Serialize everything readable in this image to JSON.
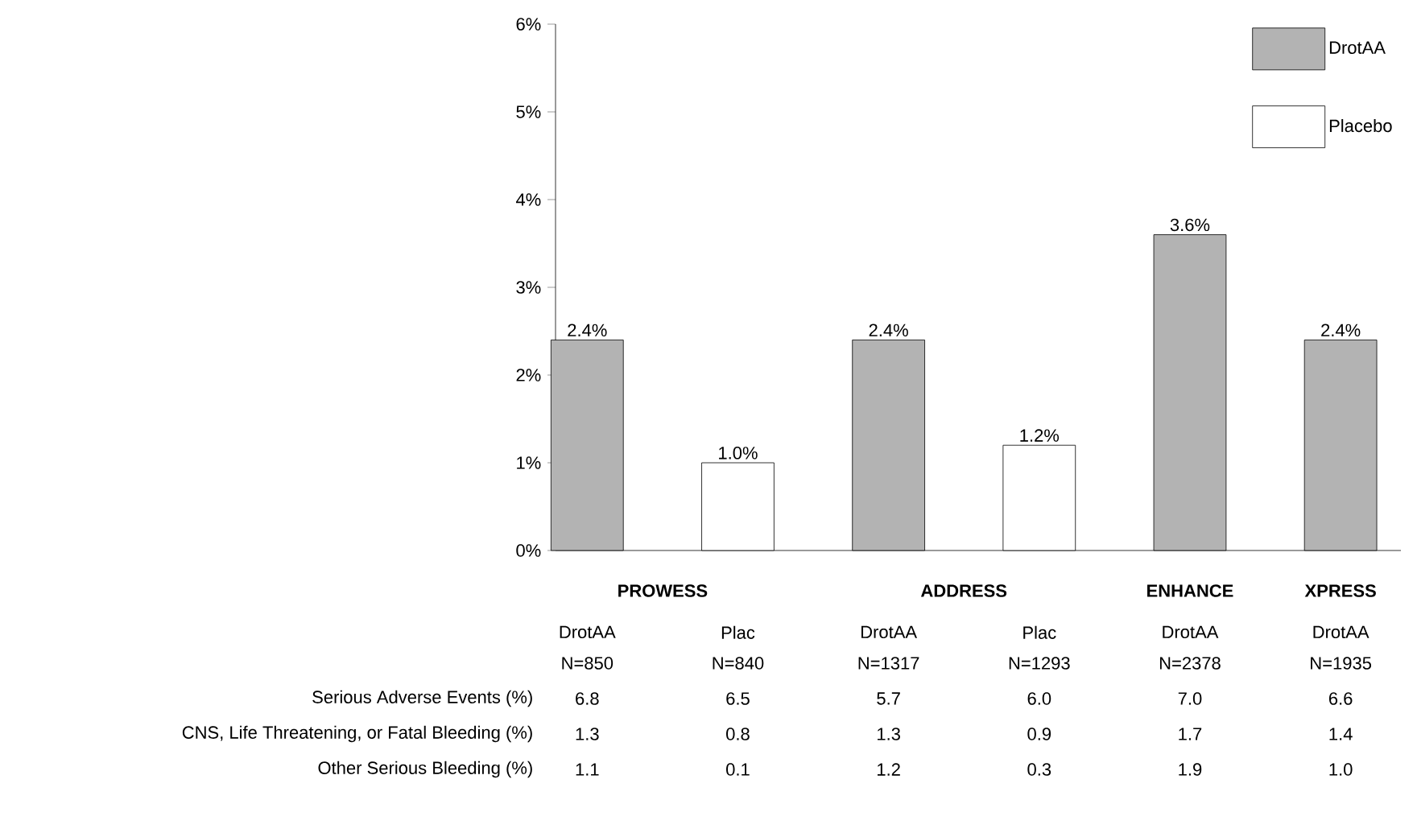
{
  "chart_data": {
    "type": "bar",
    "categories": [
      "DrotAA",
      "Plac",
      "DrotAA",
      "Plac",
      "DrotAA",
      "DrotAA"
    ],
    "series": [
      {
        "name": "DrotAA",
        "color": "#b3b3b3",
        "values": [
          2.4,
          null,
          2.4,
          null,
          3.6,
          2.4
        ],
        "value_labels": [
          "2.4%",
          null,
          "2.4%",
          null,
          "3.6%",
          "2.4%"
        ]
      },
      {
        "name": "Placebo",
        "color": "#ffffff",
        "values": [
          null,
          1.0,
          null,
          1.2,
          null,
          null
        ],
        "value_labels": [
          null,
          "1.0%",
          null,
          "1.2%",
          null,
          null
        ]
      }
    ],
    "ylim": [
      0,
      6
    ],
    "yticks": [
      {
        "value": 0,
        "label": "0%"
      },
      {
        "value": 1,
        "label": "1%"
      },
      {
        "value": 2,
        "label": "2%"
      },
      {
        "value": 3,
        "label": "3%"
      },
      {
        "value": 4,
        "label": "4%"
      },
      {
        "value": 5,
        "label": "5%"
      },
      {
        "value": 6,
        "label": "6%"
      }
    ],
    "legend": "top right",
    "annotations": [
      "PROWESS",
      "ADDRESS",
      "ENHANCE",
      "XPRESS",
      "N=850",
      "N=840",
      "N=1317",
      "N=1293",
      "N=2378",
      "N=1935",
      "Serious Adverse Events (%)",
      "6.8",
      "6.5",
      "5.7",
      "6.0",
      "7.0",
      "6.6",
      "CNS, Life Threatening, or Fatal Bleeding (%)",
      "1.3",
      "0.8",
      "1.3",
      "0.9",
      "1.7",
      "1.4",
      "Other Serious Bleeding (%)",
      "1.1",
      "0.1",
      "1.2",
      "0.3",
      "1.9",
      "1.0"
    ]
  }
}
